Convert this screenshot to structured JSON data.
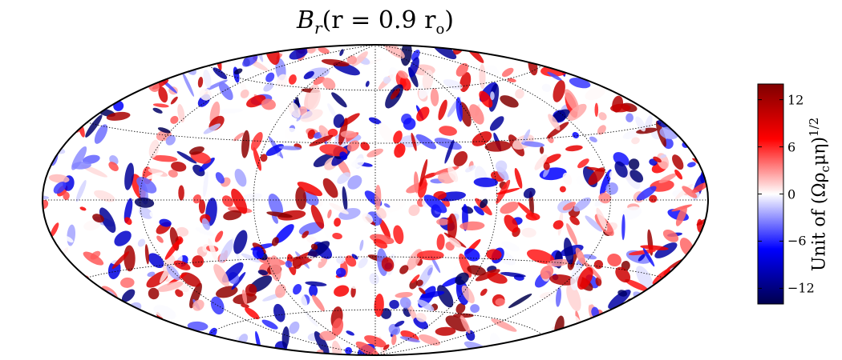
{
  "chart_data": {
    "type": "heatmap",
    "projection": "hammer",
    "title": {
      "main": "B",
      "sub": "r",
      "paren": "(r = 0.9 r",
      "sub2": "o",
      "close": ")"
    },
    "field_description": "radial magnetic field at r = 0.9 r_o, small-scale alternating positive/negative patches",
    "colorbar": {
      "label": "Unit of (Ωρcμη)1/2",
      "label_parts": {
        "pre": "Unit of (Ωρ",
        "sub": "c",
        "mid": "μη)",
        "sup": "1/2"
      },
      "vmin": -14,
      "vmax": 14,
      "ticks": [
        12,
        6,
        0,
        -6,
        -12
      ],
      "tick_labels": [
        "12",
        "6",
        "0",
        "−6",
        "−12"
      ],
      "colormap": "seismic",
      "colors": [
        "#00004c",
        "#0000ff",
        "#ffffff",
        "#ff0000",
        "#7f0000"
      ]
    },
    "graticule": {
      "parallels_deg": [
        -60,
        -30,
        0,
        30,
        60
      ],
      "meridians_deg": [
        -120,
        -60,
        0,
        60,
        120
      ],
      "style": "dotted"
    },
    "grid": true
  }
}
